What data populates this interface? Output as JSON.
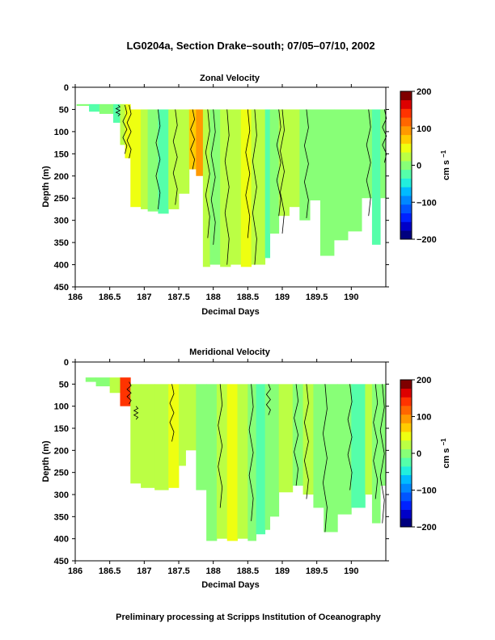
{
  "figure": {
    "title": "LG0204a, Section Drake–south; 07/05–07/10, 2002",
    "footer": "Preliminary processing at Scripps Institution of Oceanography"
  },
  "colorbar": {
    "ticks": [
      "200",
      "100",
      "0",
      "−100",
      "−200"
    ],
    "label_base": "cm s",
    "label_exp": "−1",
    "colors": [
      "#00007f",
      "#0000c8",
      "#0022ff",
      "#0055ff",
      "#0088ff",
      "#00bbff",
      "#22eedd",
      "#55ffaa",
      "#88ff77",
      "#bbff44",
      "#eeff11",
      "#ffcc00",
      "#ff9900",
      "#ff6600",
      "#ff3300",
      "#dd0000",
      "#7f0000"
    ]
  },
  "chart_data": [
    {
      "type": "heatmap",
      "title": "Zonal Velocity",
      "xlabel": "Decimal Days",
      "ylabel": "Depth (m)",
      "xlim": [
        186,
        190.5
      ],
      "ylim": [
        450,
        0
      ],
      "xticks": [
        "186",
        "186.5",
        "187",
        "187.5",
        "188",
        "188.5",
        "189",
        "189.5",
        "190"
      ],
      "yticks": [
        "0",
        "50",
        "100",
        "150",
        "200",
        "250",
        "300",
        "350",
        "400",
        "450"
      ],
      "clim": [
        -200,
        200
      ],
      "top_depth": 50,
      "columns": [
        {
          "x0": 186.02,
          "x1": 186.2,
          "top": 38,
          "bottom": 42,
          "v": 5
        },
        {
          "x0": 186.2,
          "x1": 186.35,
          "top": 38,
          "bottom": 55,
          "v": -25
        },
        {
          "x0": 186.35,
          "x1": 186.55,
          "top": 38,
          "bottom": 60,
          "v": 10
        },
        {
          "x0": 186.55,
          "x1": 186.65,
          "top": 38,
          "bottom": 80,
          "v": -20
        },
        {
          "x0": 186.65,
          "x1": 186.72,
          "top": 38,
          "bottom": 130,
          "v": 30
        },
        {
          "x0": 186.72,
          "x1": 186.8,
          "top": 38,
          "bottom": 160,
          "v": 55
        },
        {
          "x0": 186.8,
          "x1": 186.95,
          "top": 50,
          "bottom": 270,
          "v": 40
        },
        {
          "x0": 186.95,
          "x1": 187.05,
          "top": 50,
          "bottom": 275,
          "v": 20
        },
        {
          "x0": 187.05,
          "x1": 187.2,
          "top": 50,
          "bottom": 280,
          "v": -5
        },
        {
          "x0": 187.2,
          "x1": 187.35,
          "top": 50,
          "bottom": 285,
          "v": -25
        },
        {
          "x0": 187.35,
          "x1": 187.5,
          "top": 50,
          "bottom": 275,
          "v": 15
        },
        {
          "x0": 187.5,
          "x1": 187.65,
          "top": 50,
          "bottom": 240,
          "v": 30
        },
        {
          "x0": 187.65,
          "x1": 187.75,
          "top": 50,
          "bottom": 185,
          "v": 60
        },
        {
          "x0": 187.75,
          "x1": 187.85,
          "top": 50,
          "bottom": 200,
          "v": 100
        },
        {
          "x0": 187.85,
          "x1": 187.95,
          "top": 50,
          "bottom": 405,
          "v": 30
        },
        {
          "x0": 187.95,
          "x1": 188.1,
          "top": 50,
          "bottom": 400,
          "v": 5
        },
        {
          "x0": 188.1,
          "x1": 188.25,
          "top": 50,
          "bottom": 405,
          "v": 15
        },
        {
          "x0": 188.25,
          "x1": 188.4,
          "top": 50,
          "bottom": 400,
          "v": 30
        },
        {
          "x0": 188.4,
          "x1": 188.55,
          "top": 50,
          "bottom": 405,
          "v": 45
        },
        {
          "x0": 188.55,
          "x1": 188.75,
          "top": 50,
          "bottom": 400,
          "v": 20
        },
        {
          "x0": 188.75,
          "x1": 188.82,
          "top": 50,
          "bottom": 385,
          "v": -20
        },
        {
          "x0": 188.82,
          "x1": 188.95,
          "top": 50,
          "bottom": 330,
          "v": 10
        },
        {
          "x0": 188.95,
          "x1": 189.1,
          "top": 50,
          "bottom": 290,
          "v": 35
        },
        {
          "x0": 189.1,
          "x1": 189.25,
          "top": 50,
          "bottom": 270,
          "v": 25
        },
        {
          "x0": 189.25,
          "x1": 189.4,
          "top": 50,
          "bottom": 300,
          "v": 10
        },
        {
          "x0": 189.4,
          "x1": 189.55,
          "top": 50,
          "bottom": 255,
          "v": 5
        },
        {
          "x0": 189.55,
          "x1": 189.75,
          "top": 50,
          "bottom": 380,
          "v": -5
        },
        {
          "x0": 189.75,
          "x1": 189.95,
          "top": 50,
          "bottom": 345,
          "v": -10
        },
        {
          "x0": 189.95,
          "x1": 190.15,
          "top": 50,
          "bottom": 325,
          "v": -5
        },
        {
          "x0": 190.15,
          "x1": 190.3,
          "top": 50,
          "bottom": 250,
          "v": -10
        },
        {
          "x0": 190.3,
          "x1": 190.42,
          "top": 50,
          "bottom": 355,
          "v": -15
        },
        {
          "x0": 190.42,
          "x1": 190.5,
          "top": 50,
          "bottom": 250,
          "v": 0
        }
      ],
      "contours": [
        {
          "x": 186.62,
          "top": 40,
          "bottom": 65
        },
        {
          "x": 186.72,
          "top": 40,
          "bottom": 150
        },
        {
          "x": 186.78,
          "top": 40,
          "bottom": 160
        },
        {
          "x": 187.2,
          "top": 50,
          "bottom": 275
        },
        {
          "x": 187.45,
          "top": 50,
          "bottom": 265
        },
        {
          "x": 187.7,
          "top": 50,
          "bottom": 185
        },
        {
          "x": 187.92,
          "top": 50,
          "bottom": 340
        },
        {
          "x": 188.0,
          "top": 50,
          "bottom": 355
        },
        {
          "x": 188.2,
          "top": 50,
          "bottom": 400
        },
        {
          "x": 188.5,
          "top": 50,
          "bottom": 340
        },
        {
          "x": 188.6,
          "top": 50,
          "bottom": 400
        },
        {
          "x": 188.95,
          "top": 50,
          "bottom": 290
        },
        {
          "x": 189.0,
          "top": 50,
          "bottom": 330
        },
        {
          "x": 189.35,
          "top": 50,
          "bottom": 295
        },
        {
          "x": 190.25,
          "top": 50,
          "bottom": 290
        },
        {
          "x": 190.48,
          "top": 50,
          "bottom": 170
        }
      ]
    },
    {
      "type": "heatmap",
      "title": "Meridional Velocity",
      "xlabel": "Decimal Days",
      "ylabel": "Depth (m)",
      "xlim": [
        186,
        190.5
      ],
      "ylim": [
        450,
        0
      ],
      "xticks": [
        "186",
        "186.5",
        "187",
        "187.5",
        "188",
        "188.5",
        "189",
        "189.5",
        "190"
      ],
      "yticks": [
        "0",
        "50",
        "100",
        "150",
        "200",
        "250",
        "300",
        "350",
        "400",
        "450"
      ],
      "clim": [
        -200,
        200
      ],
      "top_depth": 50,
      "columns": [
        {
          "x0": 186.15,
          "x1": 186.3,
          "top": 35,
          "bottom": 45,
          "v": 10
        },
        {
          "x0": 186.3,
          "x1": 186.5,
          "top": 35,
          "bottom": 55,
          "v": 5
        },
        {
          "x0": 186.5,
          "x1": 186.65,
          "top": 35,
          "bottom": 70,
          "v": 20
        },
        {
          "x0": 186.65,
          "x1": 186.8,
          "top": 35,
          "bottom": 100,
          "v": 150
        },
        {
          "x0": 186.8,
          "x1": 186.95,
          "top": 50,
          "bottom": 275,
          "v": 20
        },
        {
          "x0": 186.95,
          "x1": 187.15,
          "top": 50,
          "bottom": 285,
          "v": 35
        },
        {
          "x0": 187.15,
          "x1": 187.35,
          "top": 50,
          "bottom": 290,
          "v": 30
        },
        {
          "x0": 187.35,
          "x1": 187.5,
          "top": 50,
          "bottom": 285,
          "v": 40
        },
        {
          "x0": 187.5,
          "x1": 187.6,
          "top": 50,
          "bottom": 235,
          "v": 30
        },
        {
          "x0": 187.6,
          "x1": 187.75,
          "top": 50,
          "bottom": 200,
          "v": 20
        },
        {
          "x0": 187.75,
          "x1": 187.9,
          "top": 50,
          "bottom": 290,
          "v": 10
        },
        {
          "x0": 187.9,
          "x1": 188.05,
          "top": 50,
          "bottom": 405,
          "v": 10
        },
        {
          "x0": 188.05,
          "x1": 188.2,
          "top": 50,
          "bottom": 400,
          "v": 20
        },
        {
          "x0": 188.2,
          "x1": 188.35,
          "top": 50,
          "bottom": 405,
          "v": 40
        },
        {
          "x0": 188.35,
          "x1": 188.5,
          "top": 50,
          "bottom": 400,
          "v": 25
        },
        {
          "x0": 188.5,
          "x1": 188.62,
          "top": 50,
          "bottom": 405,
          "v": 5
        },
        {
          "x0": 188.62,
          "x1": 188.75,
          "top": 50,
          "bottom": 390,
          "v": -25
        },
        {
          "x0": 188.75,
          "x1": 188.82,
          "top": 50,
          "bottom": 380,
          "v": -10
        },
        {
          "x0": 188.82,
          "x1": 188.95,
          "top": 50,
          "bottom": 350,
          "v": 10
        },
        {
          "x0": 188.95,
          "x1": 189.15,
          "top": 50,
          "bottom": 295,
          "v": 15
        },
        {
          "x0": 189.15,
          "x1": 189.3,
          "top": 50,
          "bottom": 280,
          "v": 5
        },
        {
          "x0": 189.3,
          "x1": 189.45,
          "top": 50,
          "bottom": 300,
          "v": 15
        },
        {
          "x0": 189.45,
          "x1": 189.6,
          "top": 50,
          "bottom": 330,
          "v": 5
        },
        {
          "x0": 189.6,
          "x1": 189.8,
          "top": 50,
          "bottom": 385,
          "v": -5
        },
        {
          "x0": 189.8,
          "x1": 190.0,
          "top": 50,
          "bottom": 345,
          "v": -10
        },
        {
          "x0": 190.0,
          "x1": 190.2,
          "top": 50,
          "bottom": 330,
          "v": -15
        },
        {
          "x0": 190.2,
          "x1": 190.3,
          "top": 50,
          "bottom": 300,
          "v": 30
        },
        {
          "x0": 190.3,
          "x1": 190.42,
          "top": 50,
          "bottom": 365,
          "v": 10
        },
        {
          "x0": 190.42,
          "x1": 190.5,
          "top": 50,
          "bottom": 280,
          "v": -10
        }
      ],
      "contours": [
        {
          "x": 186.78,
          "top": 45,
          "bottom": 95
        },
        {
          "x": 186.88,
          "top": 100,
          "bottom": 130
        },
        {
          "x": 187.4,
          "top": 50,
          "bottom": 180
        },
        {
          "x": 188.1,
          "top": 50,
          "bottom": 330
        },
        {
          "x": 188.55,
          "top": 50,
          "bottom": 360
        },
        {
          "x": 188.8,
          "top": 50,
          "bottom": 120
        },
        {
          "x": 189.2,
          "top": 50,
          "bottom": 280
        },
        {
          "x": 189.35,
          "top": 50,
          "bottom": 310
        },
        {
          "x": 189.62,
          "top": 50,
          "bottom": 385
        },
        {
          "x": 189.98,
          "top": 50,
          "bottom": 290
        },
        {
          "x": 190.35,
          "top": 50,
          "bottom": 310
        },
        {
          "x": 190.45,
          "top": 50,
          "bottom": 365
        }
      ]
    }
  ]
}
